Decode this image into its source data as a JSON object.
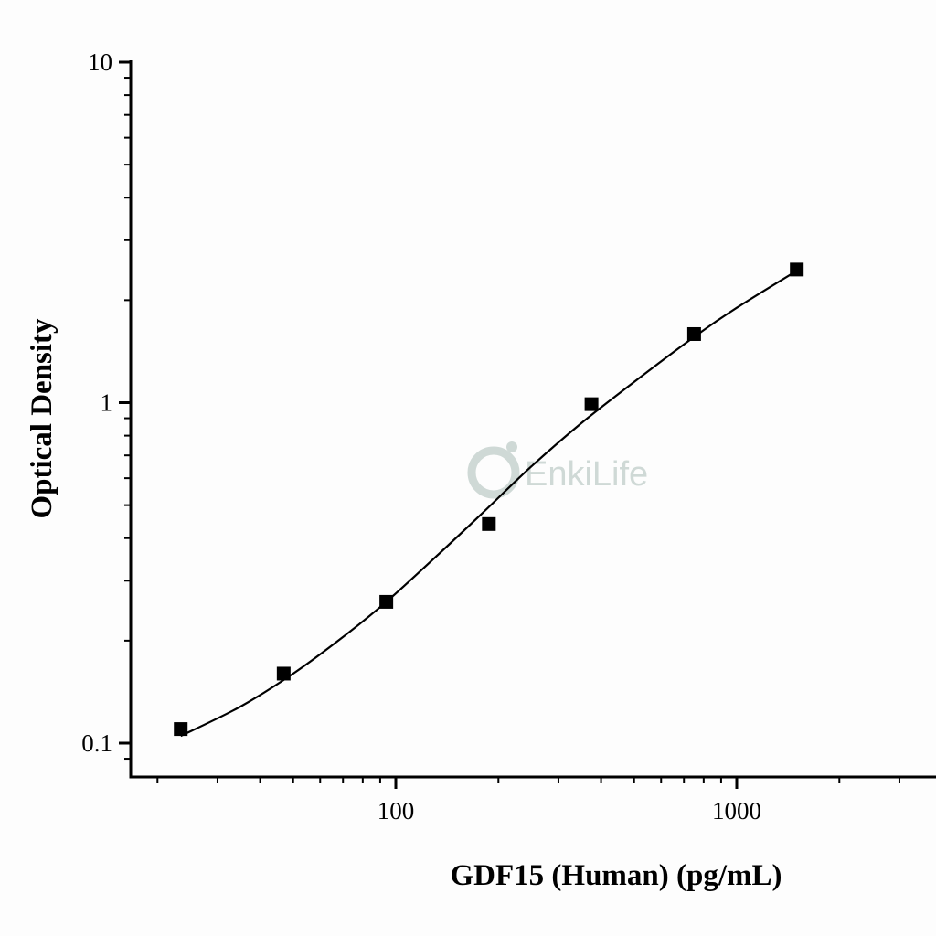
{
  "watermark": {
    "text": "EnkiLife",
    "logo_icon": "enkilife-logo-icon",
    "color": "#cfd9d6"
  },
  "chart_data": {
    "type": "scatter",
    "xlabel": "GDF15 (Human) (pg/mL)",
    "ylabel": "Optical Density",
    "x_scale": "log",
    "y_scale": "log",
    "xlim": [
      16,
      4000
    ],
    "ylim": [
      0.1,
      10
    ],
    "x_ticks": [
      {
        "value": 100,
        "label": "100"
      },
      {
        "value": 1000,
        "label": "1000"
      }
    ],
    "y_ticks": [
      {
        "value": 0.1,
        "label": "0.1"
      },
      {
        "value": 1,
        "label": "1"
      },
      {
        "value": 10,
        "label": "10"
      }
    ],
    "grid": false,
    "series": [
      {
        "marker": "square",
        "x": [
          23.4,
          46.9,
          93.8,
          187.5,
          375,
          750,
          1500
        ],
        "y": [
          0.11,
          0.16,
          0.26,
          0.44,
          0.99,
          1.59,
          2.46
        ]
      }
    ],
    "fit_curve": {
      "model": "4PL",
      "x": [
        23.4,
        35,
        50,
        70,
        93.8,
        130,
        180,
        250,
        350,
        500,
        750,
        1000,
        1500
      ],
      "y": [
        0.105,
        0.128,
        0.16,
        0.205,
        0.26,
        0.35,
        0.475,
        0.65,
        0.87,
        1.15,
        1.56,
        1.9,
        2.44
      ]
    },
    "colors": {
      "marker": "#000000",
      "curve": "#000000",
      "axis": "#000000"
    }
  }
}
